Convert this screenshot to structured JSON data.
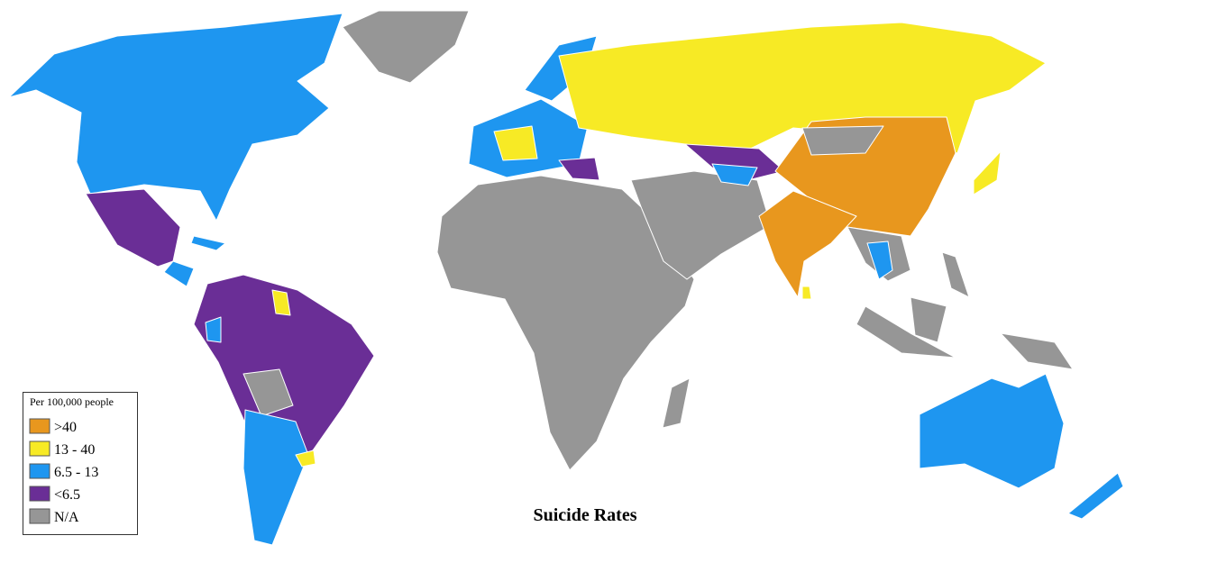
{
  "title": "Suicide Rates",
  "legend": {
    "title": "Per 100,000 people",
    "items": [
      {
        "label": ">40",
        "color": "#e8971e"
      },
      {
        "label": "13 - 40",
        "color": "#f7ea25"
      },
      {
        "label": "6.5 - 13",
        "color": "#1e96f0"
      },
      {
        "label": "<6.5",
        "color": "#6a2e96"
      },
      {
        "label": "N/A",
        "color": "#969696"
      }
    ]
  }
}
